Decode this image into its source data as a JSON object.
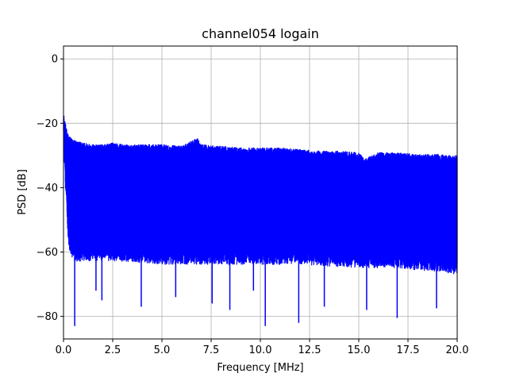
{
  "chart_data": {
    "type": "line",
    "title": "channel054 logain",
    "xlabel": "Frequency [MHz]",
    "ylabel": "PSD [dB]",
    "xlim": [
      0,
      20
    ],
    "ylim": [
      -87,
      4
    ],
    "grid": true,
    "series_color": "#0000ff",
    "xticks": [
      0,
      2.5,
      5,
      7.5,
      10,
      12.5,
      15,
      17.5,
      20
    ],
    "xtick_labels": [
      "0.0",
      "2.5",
      "5.0",
      "7.5",
      "10.0",
      "12.5",
      "15.0",
      "17.5",
      "20.0"
    ],
    "yticks": [
      0,
      -20,
      -40,
      -60,
      -80
    ],
    "ytick_labels": [
      "0",
      "−20",
      "−40",
      "−60",
      "−80"
    ],
    "upper_envelope": {
      "x": [
        0,
        0.1,
        0.2,
        0.3,
        0.5,
        1,
        1.5,
        2,
        2.5,
        3,
        4,
        5,
        6,
        6.8,
        7,
        8,
        9,
        10,
        11,
        12,
        13,
        14,
        15,
        15.3,
        16,
        17,
        18,
        19,
        20
      ],
      "y": [
        -17,
        -20,
        -23,
        -24,
        -25,
        -26,
        -26.5,
        -26.5,
        -26,
        -26.5,
        -26.5,
        -26.5,
        -27,
        -24.5,
        -26.5,
        -27,
        -27.5,
        -27.5,
        -27.5,
        -28,
        -28.5,
        -28.5,
        -29,
        -31,
        -29,
        -29,
        -29.5,
        -29.5,
        -30
      ]
    },
    "lower_envelope": {
      "x": [
        0,
        0.1,
        0.2,
        0.3,
        0.5,
        1,
        2,
        3,
        5,
        7,
        10,
        12,
        15,
        17,
        20
      ],
      "y": [
        -20,
        -35,
        -48,
        -55,
        -58,
        -58,
        -58,
        -58,
        -59,
        -59,
        -59,
        -59,
        -60,
        -60,
        -62
      ]
    },
    "dip_markers": {
      "x": [
        0.57,
        1.65,
        1.95,
        3.95,
        5.7,
        7.55,
        8.45,
        9.65,
        10.25,
        11.95,
        13.25,
        15.4,
        16.95,
        18.95
      ],
      "y": [
        -83,
        -72,
        -75,
        -77,
        -74,
        -76,
        -78,
        -72,
        -83,
        -82,
        -77,
        -78,
        -80.5,
        -77.5
      ]
    }
  }
}
